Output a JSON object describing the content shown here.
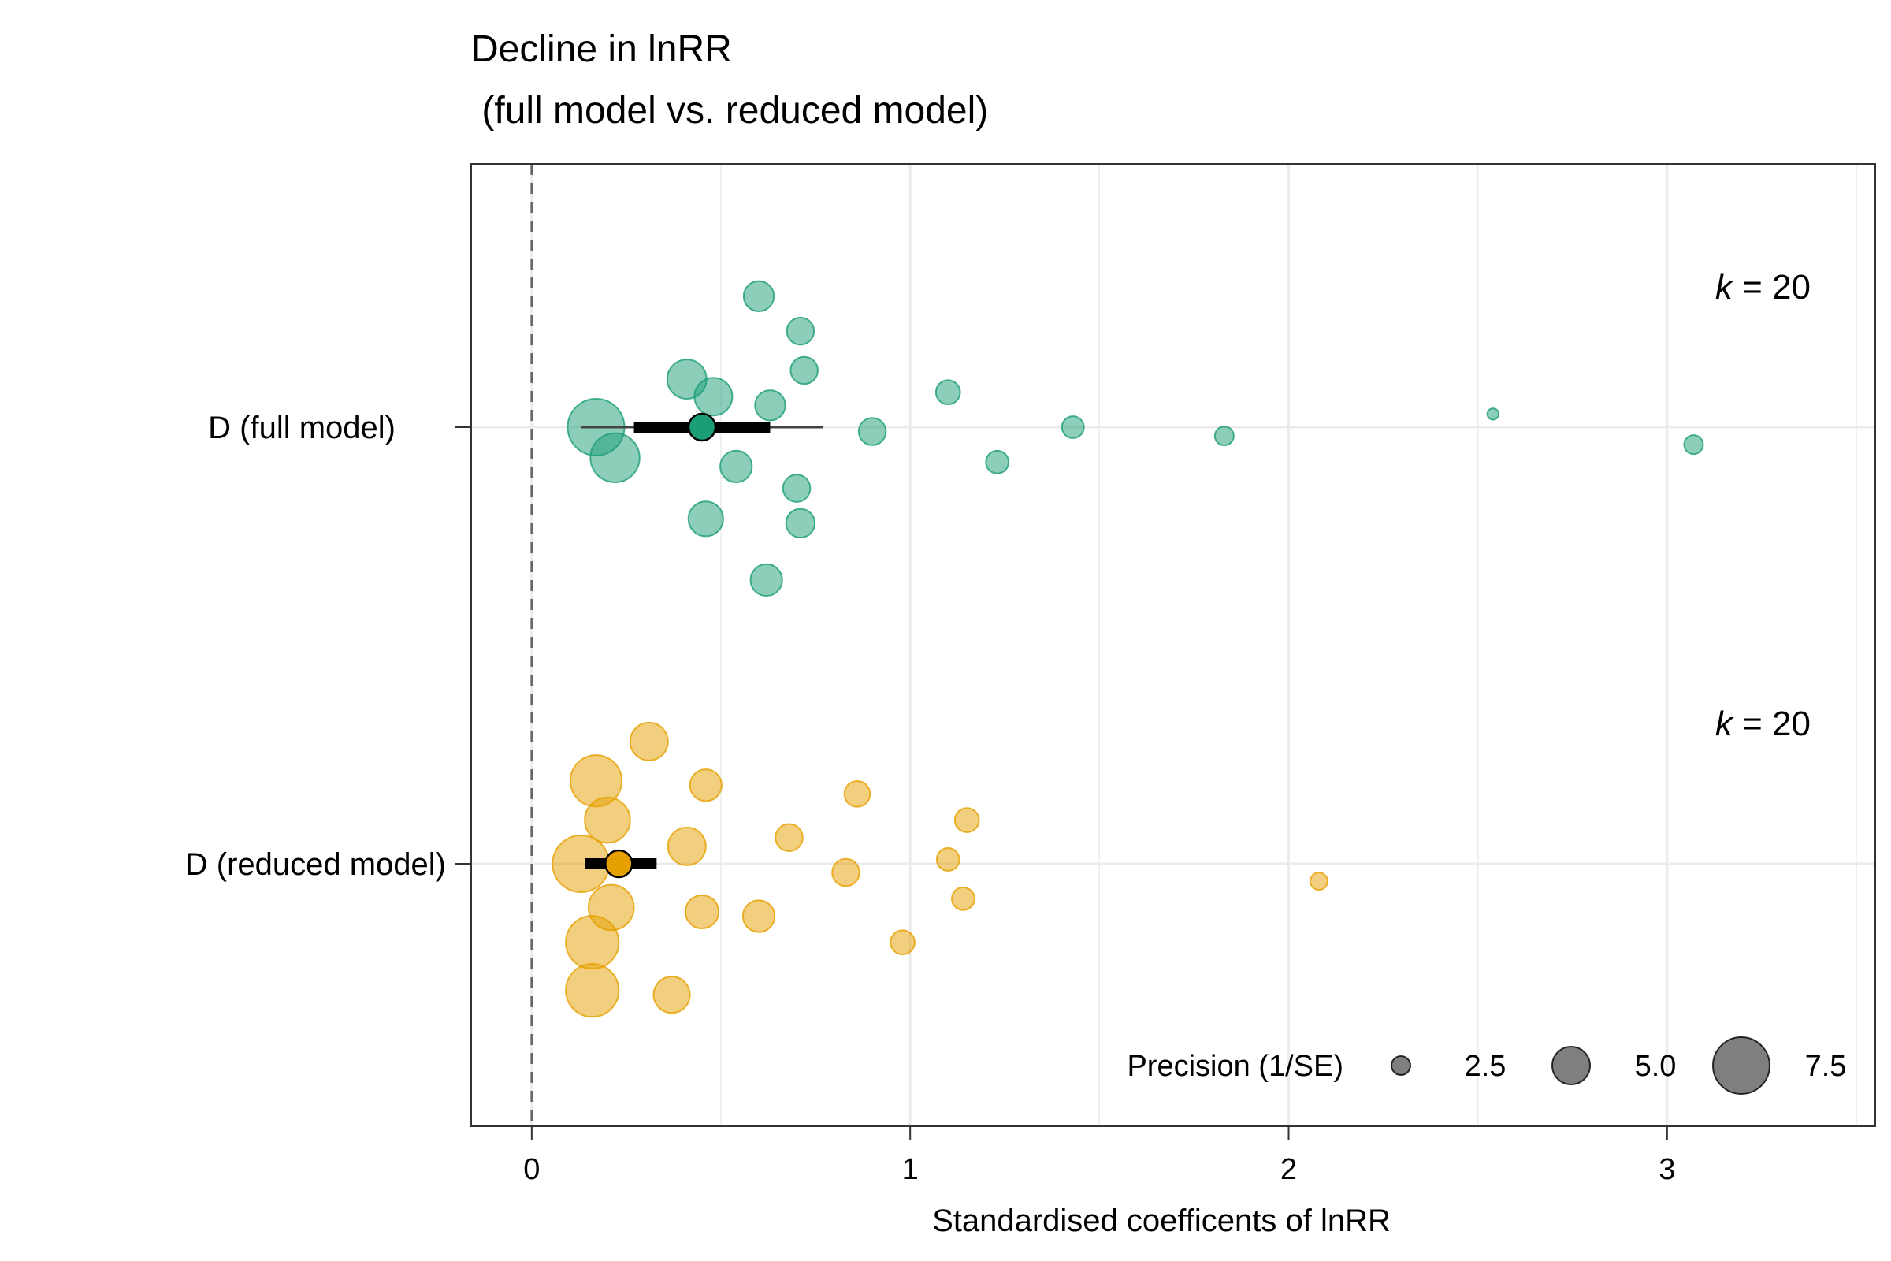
{
  "chart_data": {
    "type": "scatter",
    "title_line1": "Decline in lnRR",
    "title_line2": " (full model vs. reduced model)",
    "xlabel": "Standardised coefficents of lnRR",
    "ylabel": "",
    "xlim": [
      -0.16,
      3.55
    ],
    "x_ticks": [
      "0",
      "1",
      "2",
      "3"
    ],
    "grid": true,
    "zero_line": "dashed",
    "categories": [
      "D (full model)",
      "D (reduced model)"
    ],
    "series": [
      {
        "name": "D (full model)",
        "color": "#1b9e77",
        "k_label_italic": "k",
        "k_label_rest": " = 20",
        "estimate": 0.45,
        "ci95": [
          0.27,
          0.63
        ],
        "pi": [
          0.13,
          0.77
        ],
        "points": [
          {
            "x": 0.6,
            "jitter": 0.3,
            "precision": 4.0
          },
          {
            "x": 0.71,
            "jitter": 0.22,
            "precision": 3.6
          },
          {
            "x": 0.72,
            "jitter": 0.13,
            "precision": 3.6
          },
          {
            "x": 0.41,
            "jitter": 0.11,
            "precision": 5.2
          },
          {
            "x": 0.48,
            "jitter": 0.07,
            "precision": 5.0
          },
          {
            "x": 0.63,
            "jitter": 0.05,
            "precision": 4.0
          },
          {
            "x": 1.1,
            "jitter": 0.08,
            "precision": 3.2
          },
          {
            "x": 0.17,
            "jitter": 0.0,
            "precision": 7.5
          },
          {
            "x": 0.9,
            "jitter": -0.01,
            "precision": 3.6
          },
          {
            "x": 1.43,
            "jitter": 0.0,
            "precision": 2.9
          },
          {
            "x": 1.83,
            "jitter": -0.02,
            "precision": 2.5
          },
          {
            "x": 2.54,
            "jitter": 0.03,
            "precision": 1.5
          },
          {
            "x": 3.07,
            "jitter": -0.04,
            "precision": 2.5
          },
          {
            "x": 0.22,
            "jitter": -0.07,
            "precision": 6.5
          },
          {
            "x": 0.54,
            "jitter": -0.09,
            "precision": 4.2
          },
          {
            "x": 1.23,
            "jitter": -0.08,
            "precision": 3.0
          },
          {
            "x": 0.7,
            "jitter": -0.14,
            "precision": 3.6
          },
          {
            "x": 0.46,
            "jitter": -0.21,
            "precision": 4.6
          },
          {
            "x": 0.71,
            "jitter": -0.22,
            "precision": 3.8
          },
          {
            "x": 0.62,
            "jitter": -0.35,
            "precision": 4.2
          }
        ]
      },
      {
        "name": "D (reduced model)",
        "color": "#e6a000",
        "k_label_italic": "k",
        "k_label_rest": " = 20",
        "estimate": 0.23,
        "ci95": [
          0.14,
          0.33
        ],
        "pi": [
          0.14,
          0.33
        ],
        "points": [
          {
            "x": 0.31,
            "jitter": 0.28,
            "precision": 5.0
          },
          {
            "x": 0.17,
            "jitter": 0.19,
            "precision": 6.8
          },
          {
            "x": 0.46,
            "jitter": 0.18,
            "precision": 4.2
          },
          {
            "x": 0.86,
            "jitter": 0.16,
            "precision": 3.4
          },
          {
            "x": 0.2,
            "jitter": 0.1,
            "precision": 6.0
          },
          {
            "x": 1.15,
            "jitter": 0.1,
            "precision": 3.2
          },
          {
            "x": 0.68,
            "jitter": 0.06,
            "precision": 3.6
          },
          {
            "x": 0.41,
            "jitter": 0.04,
            "precision": 5.0
          },
          {
            "x": 1.1,
            "jitter": 0.01,
            "precision": 3.0
          },
          {
            "x": 0.13,
            "jitter": 0.0,
            "precision": 7.5
          },
          {
            "x": 0.83,
            "jitter": -0.02,
            "precision": 3.6
          },
          {
            "x": 2.08,
            "jitter": -0.04,
            "precision": 2.3
          },
          {
            "x": 0.21,
            "jitter": -0.1,
            "precision": 6.0
          },
          {
            "x": 1.14,
            "jitter": -0.08,
            "precision": 3.0
          },
          {
            "x": 0.45,
            "jitter": -0.11,
            "precision": 4.4
          },
          {
            "x": 0.6,
            "jitter": -0.12,
            "precision": 4.2
          },
          {
            "x": 0.16,
            "jitter": -0.18,
            "precision": 7.0
          },
          {
            "x": 0.98,
            "jitter": -0.18,
            "precision": 3.2
          },
          {
            "x": 0.16,
            "jitter": -0.29,
            "precision": 7.0
          },
          {
            "x": 0.37,
            "jitter": -0.3,
            "precision": 4.8
          }
        ]
      }
    ],
    "legend": {
      "title": "Precision (1/SE)",
      "placement": "bottom-right",
      "items": [
        {
          "label": "2.5",
          "precision": 2.5
        },
        {
          "label": "5.0",
          "precision": 5.0
        },
        {
          "label": "7.5",
          "precision": 7.5
        }
      ]
    }
  }
}
